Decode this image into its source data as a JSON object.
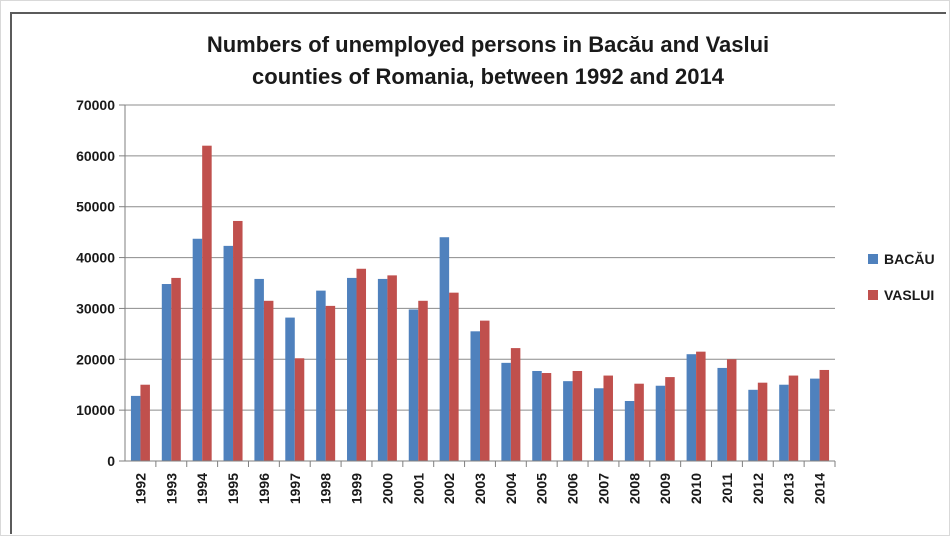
{
  "chart_data": {
    "type": "bar",
    "title_lines": [
      "Numbers of unemployed persons in Bacău and Vaslui",
      "counties of Romania, between 1992 and 2014"
    ],
    "categories": [
      "1992",
      "1993",
      "1994",
      "1995",
      "1996",
      "1997",
      "1998",
      "1999",
      "2000",
      "2001",
      "2002",
      "2003",
      "2004",
      "2005",
      "2006",
      "2007",
      "2008",
      "2009",
      "2010",
      "2011",
      "2012",
      "2013",
      "2014"
    ],
    "series": [
      {
        "name": "BACĂU",
        "color": "#4f81bd",
        "values": [
          12800,
          34800,
          43700,
          42300,
          35800,
          28200,
          33500,
          36000,
          35800,
          29800,
          44000,
          25500,
          19300,
          17700,
          15700,
          14300,
          11800,
          14800,
          21000,
          18300,
          14000,
          15000,
          16200
        ]
      },
      {
        "name": "VASLUI",
        "color": "#c0504d",
        "values": [
          15000,
          36000,
          62000,
          47200,
          31500,
          20200,
          30500,
          37800,
          36500,
          31500,
          33100,
          27600,
          22200,
          17300,
          17700,
          16800,
          15200,
          16500,
          21500,
          20000,
          15400,
          16800,
          17900
        ]
      }
    ],
    "ylim": [
      0,
      70000
    ],
    "yticks": [
      "0",
      "10000",
      "20000",
      "30000",
      "40000",
      "50000",
      "60000",
      "70000"
    ],
    "grid": true,
    "legend_position": "right"
  }
}
